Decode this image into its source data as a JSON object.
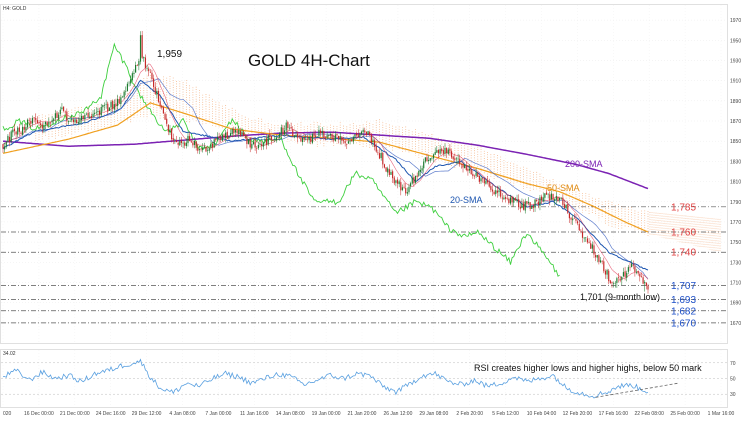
{
  "header": {
    "symbol_label": "H4: GOLD",
    "chart_title": "GOLD 4H-Chart"
  },
  "colors": {
    "bull_candle": "#1b7a2e",
    "bear_candle": "#c62828",
    "sma20": "#1e56b0",
    "sma50": "#f0a020",
    "sma200": "#7b22b3",
    "tenkan": "#e0294a",
    "kijun": "#3a5fc0",
    "chikou": "#3ecf3e",
    "cloud": "#f2a36b",
    "rsi": "#5aa0e0",
    "support_label": "#1e50c8",
    "resistance_label": "#e04040"
  },
  "chart_data": [
    {
      "type": "candlestick",
      "title": "GOLD 4H-Chart",
      "x_ticks": [
        "020",
        "16 Dec 00:00",
        "21 Dec 00:00",
        "24 Dec 16:00",
        "29 Dec 12:00",
        "4 Jan 08:00",
        "7 Jan 00:00",
        "11 Jan 16:00",
        "14 Jan 08:00",
        "19 Jan 00:00",
        "21 Jan 20:00",
        "26 Jan 12:00",
        "29 Jan 08:00",
        "2 Feb 20:00",
        "5 Feb 12:00",
        "10 Feb 04:00",
        "12 Feb 20:00",
        "17 Feb 16:00",
        "22 Feb 08:00",
        "25 Feb 00:00",
        "1 Mar 16:00"
      ],
      "y_range": [
        1655,
        1980
      ],
      "price_ticks": [
        1970,
        1950,
        1930,
        1910,
        1890,
        1870,
        1850,
        1830,
        1810,
        1790,
        1770,
        1750,
        1730,
        1710,
        1690,
        1670
      ],
      "peak": {
        "value": "1,959",
        "price": 1959,
        "bar": 84
      },
      "annotations": [
        {
          "text": "200-SMA",
          "series": "sma200"
        },
        {
          "text": "50-SMA",
          "series": "sma50"
        },
        {
          "text": "20-SMA",
          "series": "sma20"
        },
        {
          "text": "1,701 (9-month low)"
        }
      ],
      "horizontal_levels": [
        {
          "label": "1,785",
          "value": 1785,
          "type": "resistance"
        },
        {
          "label": "1,760",
          "value": 1760,
          "type": "resistance"
        },
        {
          "label": "1,740",
          "value": 1740,
          "type": "resistance"
        },
        {
          "label": "1,707",
          "value": 1707,
          "type": "support"
        },
        {
          "label": "1,693",
          "value": 1693,
          "type": "support"
        },
        {
          "label": "1,682",
          "value": 1682,
          "type": "support"
        },
        {
          "label": "1,670",
          "value": 1670,
          "type": "support"
        }
      ],
      "price_anchors": [
        [
          0,
          1847
        ],
        [
          6,
          1857
        ],
        [
          12,
          1862
        ],
        [
          18,
          1873
        ],
        [
          24,
          1866
        ],
        [
          30,
          1874
        ],
        [
          36,
          1879
        ],
        [
          42,
          1868
        ],
        [
          48,
          1873
        ],
        [
          54,
          1876
        ],
        [
          60,
          1881
        ],
        [
          66,
          1885
        ],
        [
          72,
          1893
        ],
        [
          78,
          1910
        ],
        [
          84,
          1935
        ],
        [
          90,
          1917
        ],
        [
          96,
          1885
        ],
        [
          102,
          1858
        ],
        [
          108,
          1848
        ],
        [
          114,
          1852
        ],
        [
          120,
          1840
        ],
        [
          126,
          1846
        ],
        [
          132,
          1852
        ],
        [
          138,
          1858
        ],
        [
          144,
          1860
        ],
        [
          150,
          1848
        ],
        [
          156,
          1843
        ],
        [
          162,
          1852
        ],
        [
          168,
          1857
        ],
        [
          174,
          1866
        ],
        [
          180,
          1852
        ],
        [
          186,
          1848
        ],
        [
          192,
          1858
        ],
        [
          198,
          1854
        ],
        [
          204,
          1852
        ],
        [
          210,
          1849
        ],
        [
          216,
          1858
        ],
        [
          222,
          1860
        ],
        [
          228,
          1844
        ],
        [
          234,
          1824
        ],
        [
          240,
          1810
        ],
        [
          246,
          1800
        ],
        [
          252,
          1815
        ],
        [
          258,
          1830
        ],
        [
          264,
          1840
        ],
        [
          270,
          1841
        ],
        [
          276,
          1832
        ],
        [
          282,
          1826
        ],
        [
          288,
          1816
        ],
        [
          294,
          1808
        ],
        [
          300,
          1800
        ],
        [
          306,
          1795
        ],
        [
          312,
          1790
        ],
        [
          318,
          1786
        ],
        [
          324,
          1788
        ],
        [
          330,
          1794
        ],
        [
          336,
          1796
        ],
        [
          342,
          1790
        ],
        [
          348,
          1772
        ],
        [
          354,
          1757
        ],
        [
          360,
          1744
        ],
        [
          366,
          1727
        ],
        [
          372,
          1710
        ],
        [
          378,
          1716
        ],
        [
          384,
          1725
        ],
        [
          390,
          1713
        ],
        [
          394,
          1703
        ]
      ],
      "sma20_anchors": [
        [
          0,
          1843
        ],
        [
          20,
          1860
        ],
        [
          50,
          1868
        ],
        [
          72,
          1882
        ],
        [
          84,
          1910
        ],
        [
          96,
          1895
        ],
        [
          110,
          1860
        ],
        [
          140,
          1850
        ],
        [
          170,
          1856
        ],
        [
          200,
          1852
        ],
        [
          220,
          1854
        ],
        [
          240,
          1832
        ],
        [
          252,
          1810
        ],
        [
          264,
          1825
        ],
        [
          280,
          1830
        ],
        [
          300,
          1806
        ],
        [
          320,
          1785
        ],
        [
          336,
          1790
        ],
        [
          350,
          1775
        ],
        [
          370,
          1740
        ],
        [
          394,
          1722
        ]
      ],
      "sma50_anchors": [
        [
          0,
          1838
        ],
        [
          40,
          1852
        ],
        [
          70,
          1866
        ],
        [
          90,
          1888
        ],
        [
          110,
          1878
        ],
        [
          140,
          1862
        ],
        [
          170,
          1856
        ],
        [
          200,
          1853
        ],
        [
          230,
          1849
        ],
        [
          260,
          1836
        ],
        [
          290,
          1823
        ],
        [
          320,
          1808
        ],
        [
          340,
          1800
        ],
        [
          360,
          1786
        ],
        [
          380,
          1770
        ],
        [
          394,
          1760
        ]
      ],
      "sma200_anchors": [
        [
          0,
          1850
        ],
        [
          40,
          1845
        ],
        [
          80,
          1847
        ],
        [
          110,
          1851
        ],
        [
          140,
          1855
        ],
        [
          170,
          1858
        ],
        [
          200,
          1859
        ],
        [
          230,
          1856
        ],
        [
          260,
          1853
        ],
        [
          290,
          1846
        ],
        [
          320,
          1837
        ],
        [
          350,
          1827
        ],
        [
          370,
          1818
        ],
        [
          394,
          1803
        ]
      ],
      "chikou_anchors": [
        [
          0,
          1862
        ],
        [
          10,
          1870
        ],
        [
          20,
          1862
        ],
        [
          35,
          1872
        ],
        [
          50,
          1880
        ],
        [
          60,
          1895
        ],
        [
          68,
          1945
        ],
        [
          75,
          1925
        ],
        [
          82,
          1900
        ],
        [
          90,
          1880
        ],
        [
          100,
          1858
        ],
        [
          110,
          1870
        ],
        [
          120,
          1842
        ],
        [
          130,
          1848
        ],
        [
          140,
          1872
        ],
        [
          150,
          1852
        ],
        [
          160,
          1850
        ],
        [
          170,
          1852
        ],
        [
          180,
          1818
        ],
        [
          190,
          1790
        ],
        [
          205,
          1790
        ],
        [
          215,
          1818
        ],
        [
          225,
          1812
        ],
        [
          240,
          1778
        ],
        [
          252,
          1790
        ],
        [
          262,
          1784
        ],
        [
          272,
          1764
        ],
        [
          282,
          1755
        ],
        [
          290,
          1760
        ],
        [
          300,
          1745
        ],
        [
          310,
          1730
        ],
        [
          320,
          1760
        ],
        [
          326,
          1747
        ],
        [
          335,
          1728
        ],
        [
          340,
          1715
        ]
      ],
      "cloud_upper_anchors": [
        [
          20,
          1875
        ],
        [
          60,
          1885
        ],
        [
          90,
          1915
        ],
        [
          110,
          1910
        ],
        [
          130,
          1890
        ],
        [
          150,
          1873
        ],
        [
          170,
          1866
        ],
        [
          190,
          1867
        ],
        [
          210,
          1866
        ],
        [
          230,
          1870
        ],
        [
          250,
          1862
        ],
        [
          270,
          1850
        ],
        [
          290,
          1845
        ],
        [
          310,
          1830
        ],
        [
          330,
          1815
        ],
        [
          350,
          1800
        ],
        [
          370,
          1790
        ],
        [
          394,
          1780
        ]
      ],
      "cloud_lower_anchors": [
        [
          20,
          1850
        ],
        [
          60,
          1862
        ],
        [
          90,
          1875
        ],
        [
          110,
          1870
        ],
        [
          130,
          1865
        ],
        [
          150,
          1855
        ],
        [
          170,
          1850
        ],
        [
          190,
          1846
        ],
        [
          210,
          1846
        ],
        [
          230,
          1845
        ],
        [
          250,
          1838
        ],
        [
          270,
          1828
        ],
        [
          290,
          1818
        ],
        [
          310,
          1808
        ],
        [
          330,
          1798
        ],
        [
          350,
          1784
        ],
        [
          370,
          1768
        ],
        [
          394,
          1758
        ]
      ]
    },
    {
      "type": "line",
      "name": "RSI panel",
      "indicator_label": "34.02",
      "y_range": [
        15,
        85
      ],
      "ticks": [
        70,
        50,
        30
      ],
      "annotation": "RSI creates higher lows and higher highs, below 50 mark",
      "rsi_anchors": [
        [
          0,
          52
        ],
        [
          8,
          60
        ],
        [
          16,
          48
        ],
        [
          24,
          58
        ],
        [
          32,
          50
        ],
        [
          40,
          54
        ],
        [
          48,
          46
        ],
        [
          56,
          56
        ],
        [
          64,
          60
        ],
        [
          72,
          66
        ],
        [
          80,
          70
        ],
        [
          84,
          72
        ],
        [
          90,
          52
        ],
        [
          96,
          38
        ],
        [
          104,
          32
        ],
        [
          112,
          44
        ],
        [
          120,
          40
        ],
        [
          128,
          50
        ],
        [
          136,
          56
        ],
        [
          144,
          52
        ],
        [
          152,
          44
        ],
        [
          160,
          50
        ],
        [
          168,
          56
        ],
        [
          176,
          52
        ],
        [
          184,
          42
        ],
        [
          192,
          48
        ],
        [
          200,
          54
        ],
        [
          208,
          50
        ],
        [
          216,
          56
        ],
        [
          224,
          54
        ],
        [
          232,
          40
        ],
        [
          240,
          33
        ],
        [
          248,
          42
        ],
        [
          256,
          54
        ],
        [
          264,
          56
        ],
        [
          272,
          46
        ],
        [
          280,
          42
        ],
        [
          288,
          48
        ],
        [
          296,
          40
        ],
        [
          304,
          44
        ],
        [
          312,
          52
        ],
        [
          320,
          46
        ],
        [
          328,
          50
        ],
        [
          336,
          54
        ],
        [
          344,
          38
        ],
        [
          352,
          32
        ],
        [
          360,
          28
        ],
        [
          368,
          32
        ],
        [
          376,
          40
        ],
        [
          384,
          42
        ],
        [
          390,
          36
        ],
        [
          394,
          34
        ]
      ],
      "trendline_bars": [
        [
          362,
          26
        ],
        [
          394,
          38
        ]
      ]
    }
  ]
}
